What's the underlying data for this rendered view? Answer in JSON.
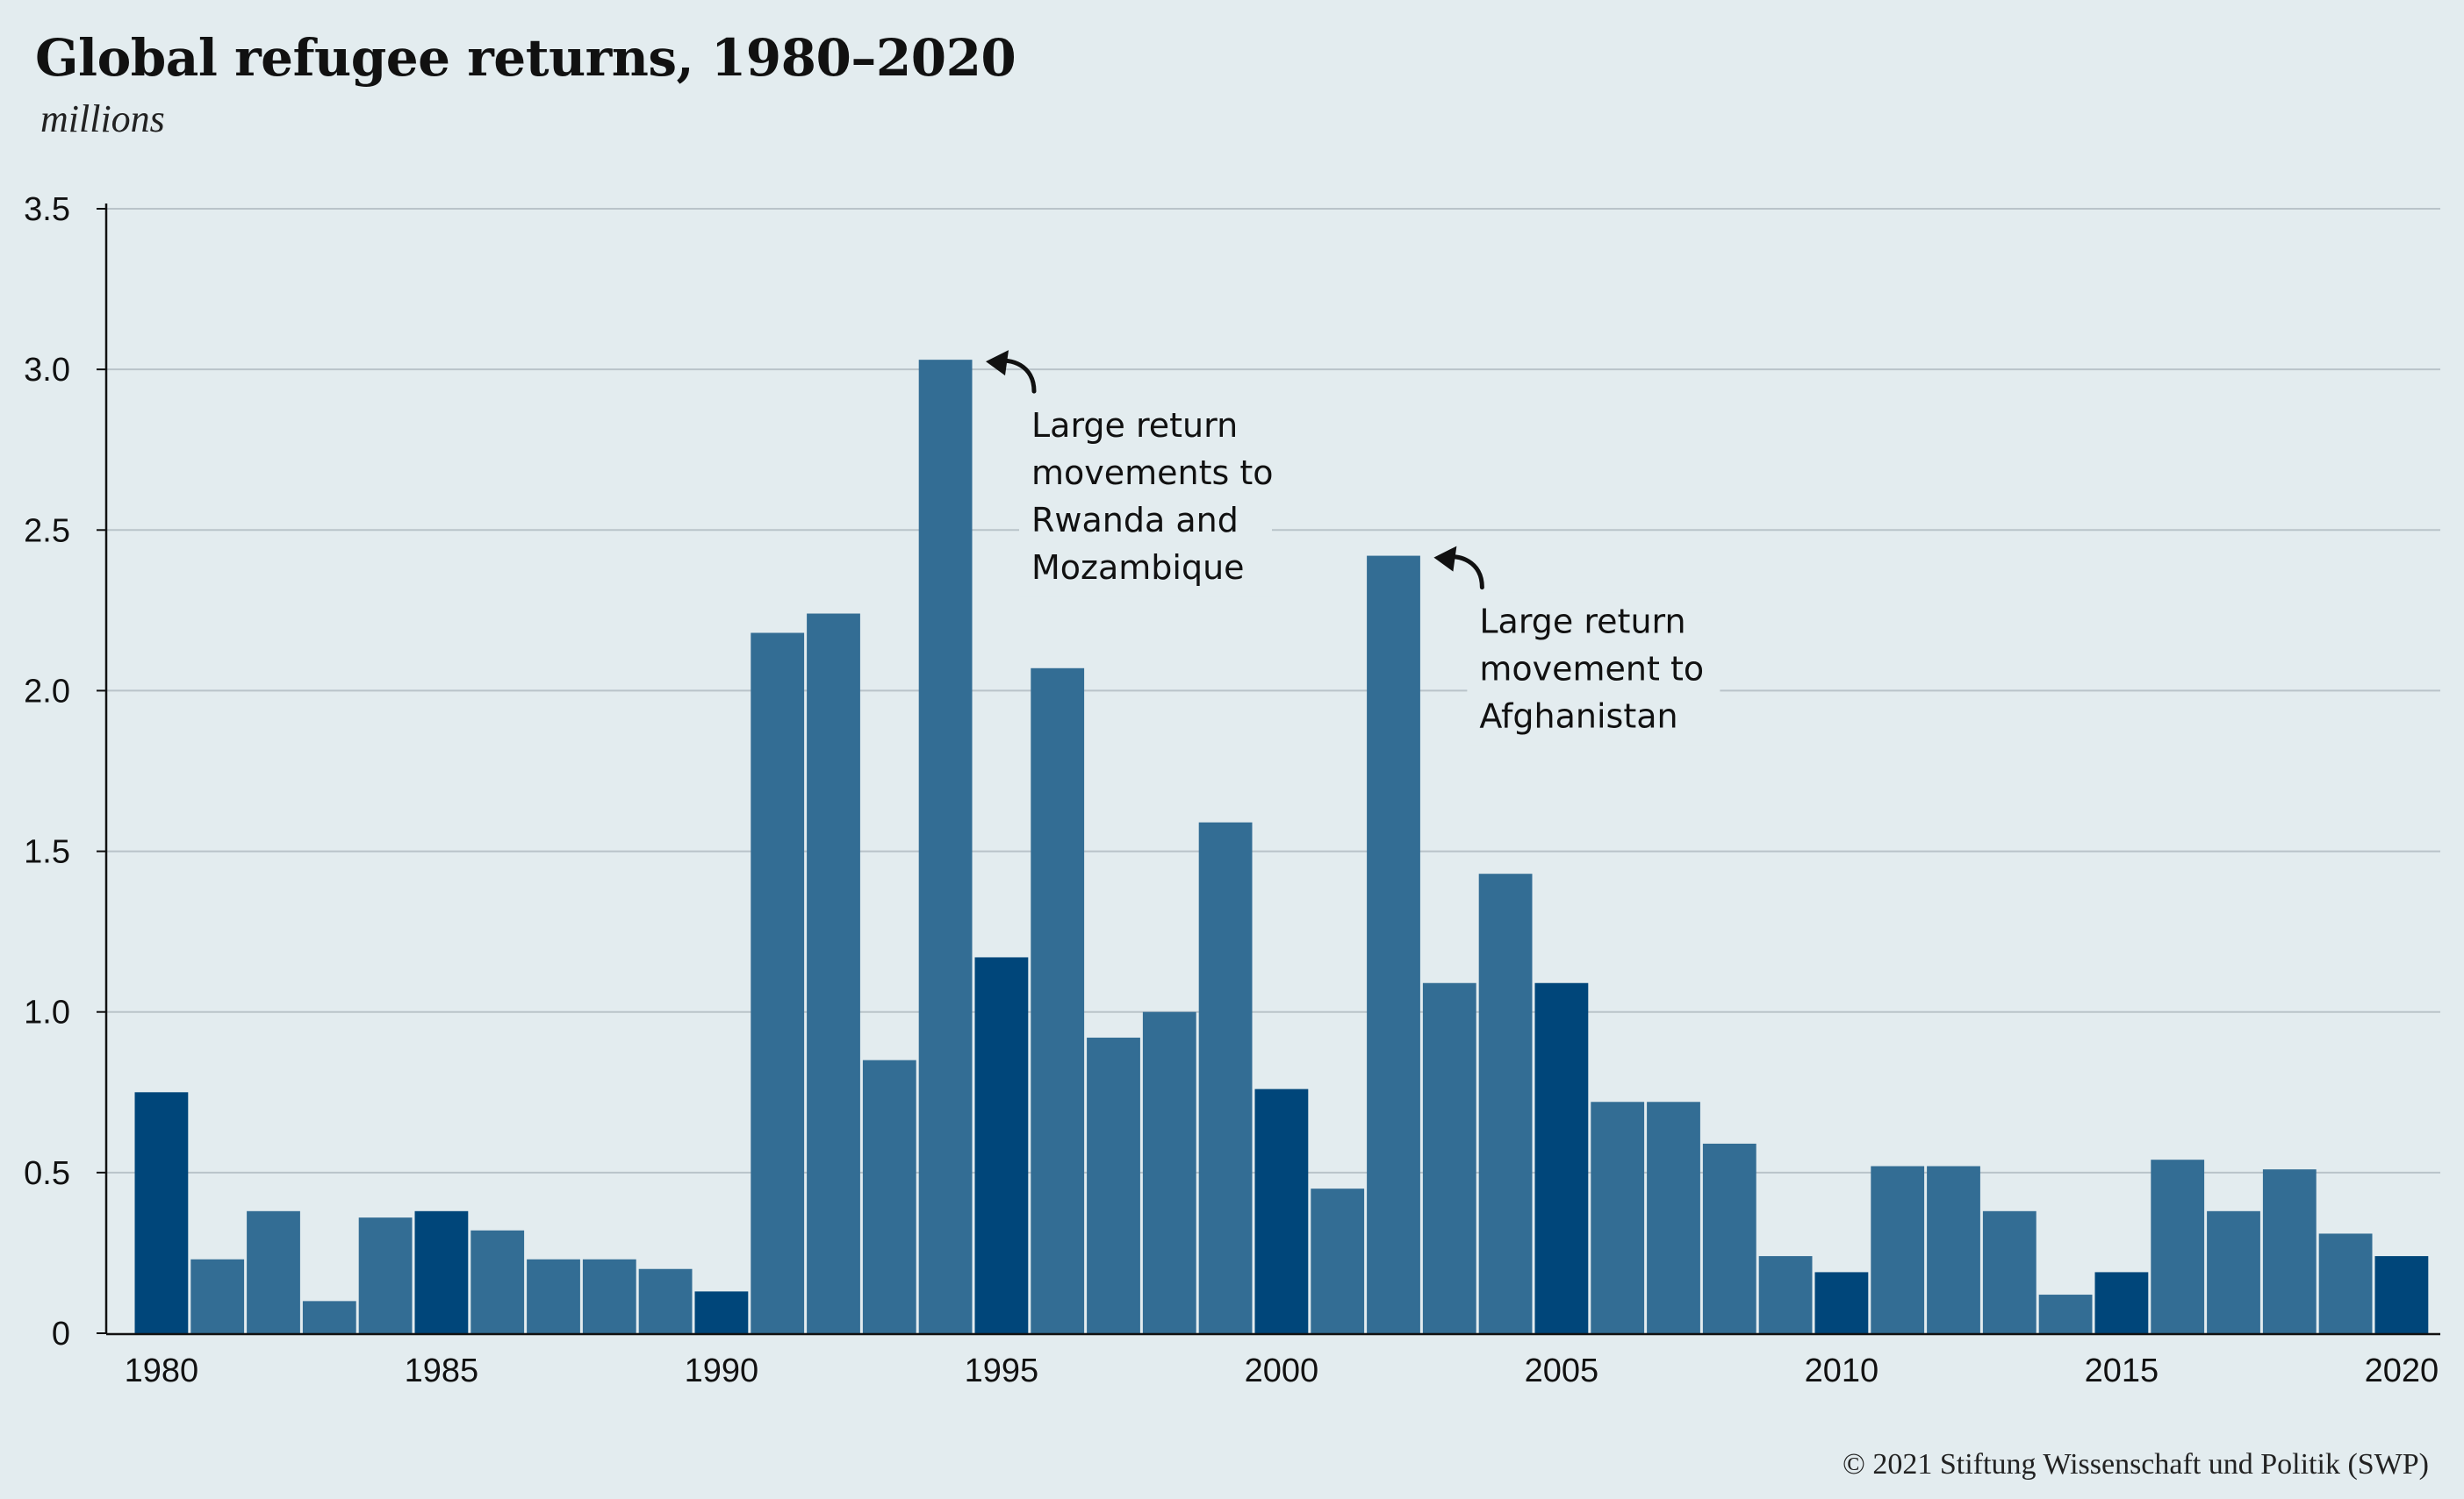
{
  "header": {
    "title": "Global refugee returns, 1980–2020",
    "subtitle": "millions"
  },
  "footer": {
    "source": "© 2021 Stiftung Wissenschaft und Politik (SWP)"
  },
  "colors": {
    "background": "#e3ecef",
    "bar": "#336d94",
    "bar_highlight": "#00467a",
    "grid": "#b9c3c9",
    "axis": "#111111"
  },
  "chart_data": {
    "type": "bar",
    "title": "Global refugee returns, 1980–2020",
    "subtitle": "millions",
    "xlabel": "",
    "ylabel": "",
    "ylim": [
      0,
      3.5
    ],
    "yticks": [
      0,
      0.5,
      1.0,
      1.5,
      2.0,
      2.5,
      3.0,
      3.5
    ],
    "ytick_labels": [
      "0",
      "0.5",
      "1.0",
      "1.5",
      "2.0",
      "2.5",
      "3.0",
      "3.5"
    ],
    "xticks": [
      "1980",
      "1985",
      "1990",
      "1995",
      "2000",
      "2005",
      "2010",
      "2015",
      "2020"
    ],
    "grid": "horizontal",
    "categories": [
      "1980",
      "1981",
      "1982",
      "1983",
      "1984",
      "1985",
      "1986",
      "1987",
      "1988",
      "1989",
      "1990",
      "1991",
      "1992",
      "1993",
      "1994",
      "1995",
      "1996",
      "1997",
      "1998",
      "1999",
      "2000",
      "2001",
      "2002",
      "2003",
      "2004",
      "2005",
      "2006",
      "2007",
      "2008",
      "2009",
      "2010",
      "2011",
      "2012",
      "2013",
      "2014",
      "2015",
      "2016",
      "2017",
      "2018",
      "2019",
      "2020"
    ],
    "values": [
      0.75,
      0.23,
      0.38,
      0.1,
      0.36,
      0.38,
      0.32,
      0.23,
      0.23,
      0.2,
      0.13,
      2.18,
      2.24,
      0.85,
      3.03,
      1.17,
      2.07,
      0.92,
      1.0,
      1.59,
      0.76,
      0.45,
      2.42,
      1.09,
      1.43,
      1.09,
      0.72,
      0.72,
      0.59,
      0.24,
      0.19,
      0.52,
      0.52,
      0.38,
      0.12,
      0.19,
      0.54,
      0.38,
      0.51,
      0.31,
      0.24
    ],
    "highlighted_years": [
      "1980",
      "1985",
      "1990",
      "1995",
      "2000",
      "2005",
      "2010",
      "2015",
      "2020"
    ],
    "annotations": [
      {
        "target": "1994",
        "lines": [
          "Large return",
          "movements to",
          "Rwanda and",
          "Mozambique"
        ]
      },
      {
        "target": "2002",
        "lines": [
          "Large return",
          "movement to",
          "Afghanistan"
        ]
      }
    ]
  }
}
